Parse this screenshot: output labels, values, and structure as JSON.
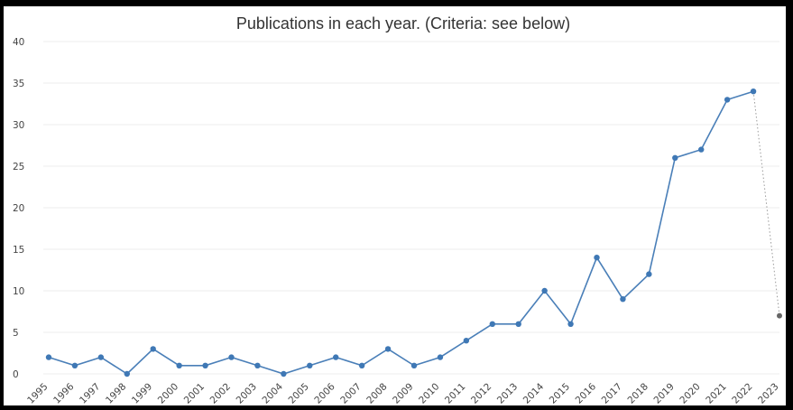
{
  "chart_data": {
    "type": "line",
    "title": "Publications in each year. (Criteria: see below)",
    "xlabel": "",
    "ylabel": "",
    "ylim": [
      0,
      40
    ],
    "yticks": [
      "0",
      "5",
      "10",
      "15",
      "20",
      "25",
      "30",
      "35",
      "40"
    ],
    "grid": true,
    "legend": "none",
    "colors": {
      "line": "#4a7fb8",
      "marker": "#3f78b5",
      "projection": "#9a9a9a"
    },
    "categories": [
      "1995",
      "1996",
      "1997",
      "1998",
      "1999",
      "2000",
      "2001",
      "2002",
      "2003",
      "2004",
      "2005",
      "2006",
      "2007",
      "2008",
      "2009",
      "2010",
      "2011",
      "2012",
      "2013",
      "2014",
      "2015",
      "2016",
      "2017",
      "2018",
      "2019",
      "2020",
      "2021",
      "2022",
      "2023"
    ],
    "series": [
      {
        "values": [
          2,
          1,
          2,
          0,
          3,
          1,
          1,
          2,
          1,
          0,
          1,
          2,
          1,
          3,
          1,
          2,
          4,
          6,
          6,
          10,
          6,
          14,
          9,
          12,
          26,
          27,
          33,
          34,
          null
        ]
      },
      {
        "style": "dotted",
        "values": [
          null,
          null,
          null,
          null,
          null,
          null,
          null,
          null,
          null,
          null,
          null,
          null,
          null,
          null,
          null,
          null,
          null,
          null,
          null,
          null,
          null,
          null,
          null,
          null,
          null,
          null,
          null,
          34,
          7
        ]
      }
    ]
  }
}
